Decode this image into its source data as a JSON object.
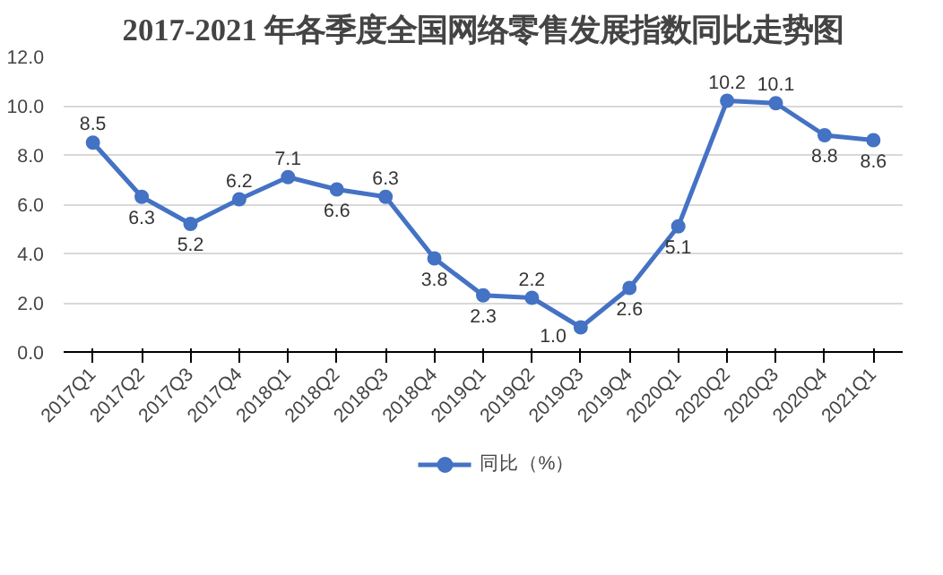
{
  "chart_data": {
    "type": "line",
    "title": "2017-2021 年各季度全国网络零售发展指数同比走势图",
    "categories": [
      "2017Q1",
      "2017Q2",
      "2017Q3",
      "2017Q4",
      "2018Q1",
      "2018Q2",
      "2018Q3",
      "2018Q4",
      "2019Q1",
      "2019Q2",
      "2019Q3",
      "2019Q4",
      "2020Q1",
      "2020Q2",
      "2020Q3",
      "2020Q4",
      "2021Q1"
    ],
    "series": [
      {
        "name": "同比（%）",
        "color": "#4472c4",
        "values": [
          8.5,
          6.3,
          5.2,
          6.2,
          7.1,
          6.6,
          6.3,
          3.8,
          2.3,
          2.2,
          1.0,
          2.6,
          5.1,
          10.2,
          10.1,
          8.8,
          8.6
        ],
        "value_labels": [
          "8.5",
          "6.3",
          "5.2",
          "6.2",
          "7.1",
          "6.6",
          "6.3",
          "3.8",
          "2.3",
          "2.2",
          "1.0",
          "2.6",
          "5.1",
          "10.2",
          "10.1",
          "8.8",
          "8.6"
        ]
      }
    ],
    "ylim": [
      0,
      12
    ],
    "yticks": [
      {
        "value": 0,
        "label": "0.0"
      },
      {
        "value": 2,
        "label": "2.0"
      },
      {
        "value": 4,
        "label": "4.0"
      },
      {
        "value": 6,
        "label": "6.0"
      },
      {
        "value": 8,
        "label": "8.0"
      },
      {
        "value": 10,
        "label": "10.0"
      },
      {
        "value": 12,
        "label": "12.0"
      }
    ],
    "grid": "y",
    "legend": "bottom",
    "marker": "circle",
    "line_style": "solid",
    "data_labels": true
  }
}
